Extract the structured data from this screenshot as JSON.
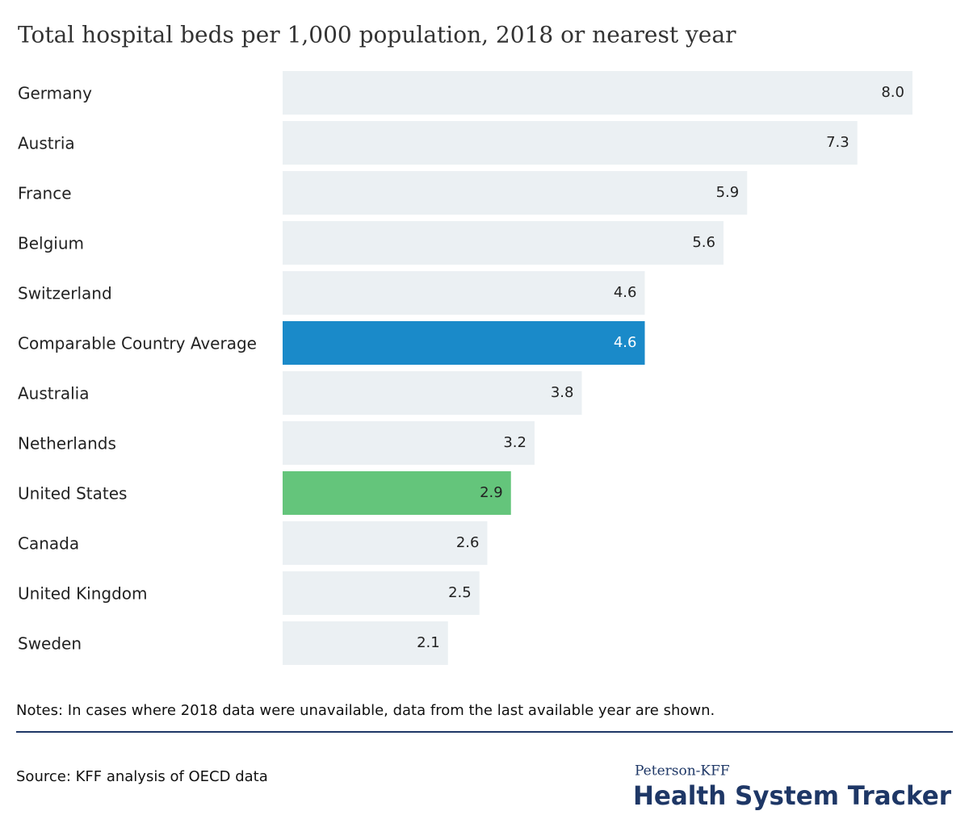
{
  "chart_data": {
    "type": "bar",
    "orientation": "horizontal",
    "title": "Total hospital beds per 1,000 population, 2018 or nearest year",
    "categories": [
      "Germany",
      "Austria",
      "France",
      "Belgium",
      "Switzerland",
      "Comparable Country Average",
      "Australia",
      "Netherlands",
      "United States",
      "Canada",
      "United Kingdom",
      "Sweden"
    ],
    "values": [
      8.0,
      7.3,
      5.9,
      5.6,
      4.6,
      4.6,
      3.8,
      3.2,
      2.9,
      2.6,
      2.5,
      2.1
    ],
    "value_labels": [
      "8.0",
      "7.3",
      "5.9",
      "5.6",
      "4.6",
      "4.6",
      "3.8",
      "3.2",
      "2.9",
      "2.6",
      "2.5",
      "2.1"
    ],
    "colors": [
      "#ebf0f3",
      "#ebf0f3",
      "#ebf0f3",
      "#ebf0f3",
      "#ebf0f3",
      "#1a8ac9",
      "#ebf0f3",
      "#ebf0f3",
      "#64c57b",
      "#ebf0f3",
      "#ebf0f3",
      "#ebf0f3"
    ],
    "notes": "Notes: In cases where 2018 data were unavailable, data from the last available year are shown.",
    "source": "Source: KFF analysis of OECD data",
    "logo": {
      "top": "Peterson-KFF",
      "main": "Health System Tracker"
    }
  }
}
